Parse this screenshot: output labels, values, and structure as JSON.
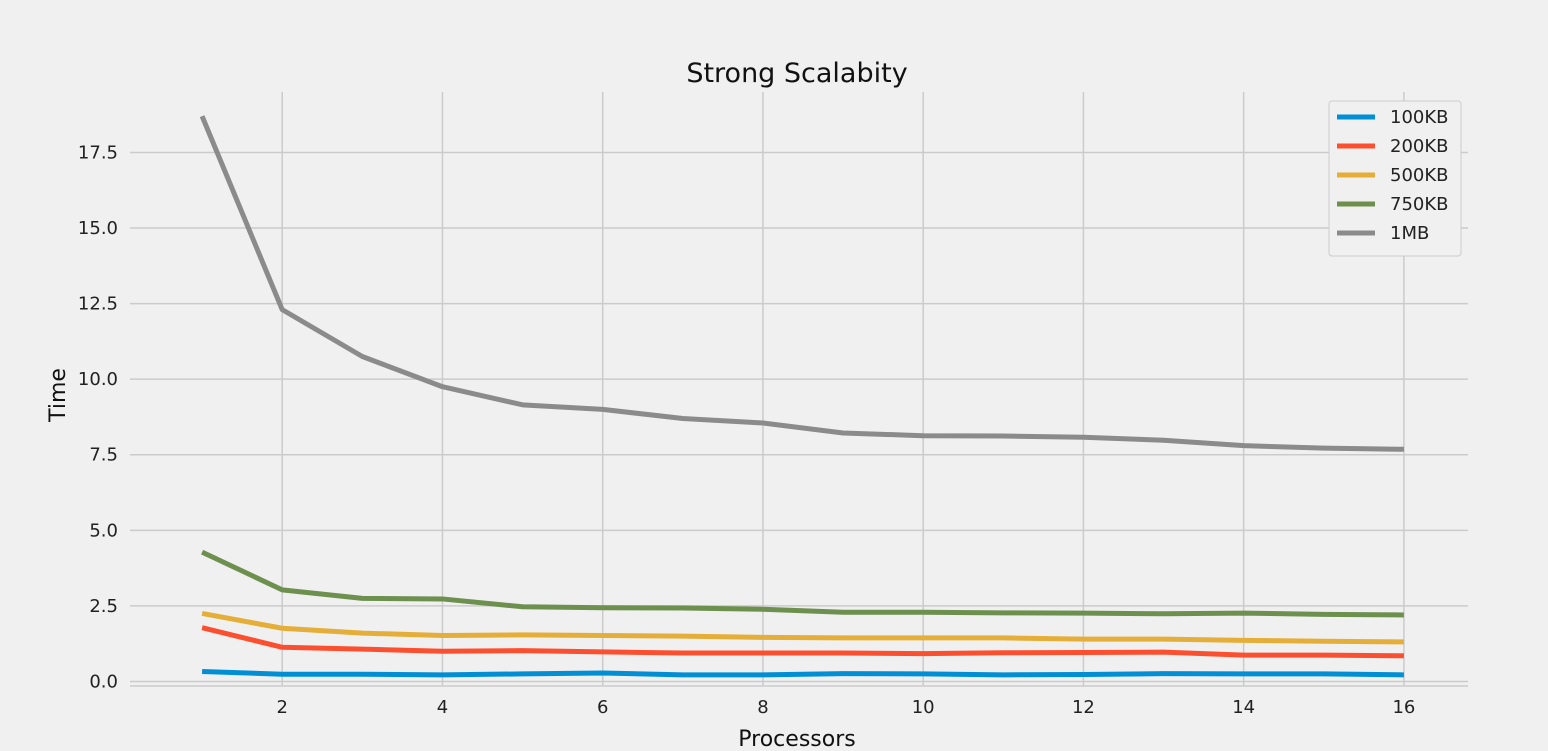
{
  "chart_data": {
    "type": "line",
    "title": "Strong Scalabity",
    "xlabel": "Processors",
    "ylabel": "Time",
    "x": [
      1,
      2,
      3,
      4,
      5,
      6,
      7,
      8,
      9,
      10,
      11,
      12,
      13,
      14,
      15,
      16
    ],
    "xlim": [
      0.1,
      16.8
    ],
    "ylim": [
      -0.15,
      19.5
    ],
    "xticks": [
      "2",
      "4",
      "6",
      "8",
      "10",
      "12",
      "14",
      "16"
    ],
    "yticks": [
      "0.0",
      "2.5",
      "5.0",
      "7.5",
      "10.0",
      "12.5",
      "15.0",
      "17.5"
    ],
    "grid": true,
    "legend_position": "top-right",
    "series": [
      {
        "name": "100KB",
        "color": "#008fd5",
        "values": [
          0.33,
          0.24,
          0.24,
          0.22,
          0.25,
          0.28,
          0.22,
          0.22,
          0.26,
          0.25,
          0.22,
          0.23,
          0.26,
          0.25,
          0.25,
          0.22
        ]
      },
      {
        "name": "200KB",
        "color": "#fc4f30",
        "values": [
          1.78,
          1.13,
          1.07,
          1.0,
          1.02,
          0.98,
          0.94,
          0.94,
          0.94,
          0.92,
          0.95,
          0.96,
          0.97,
          0.87,
          0.87,
          0.85
        ]
      },
      {
        "name": "500KB",
        "color": "#e5ae38",
        "values": [
          2.25,
          1.76,
          1.6,
          1.52,
          1.54,
          1.52,
          1.5,
          1.46,
          1.44,
          1.44,
          1.44,
          1.4,
          1.4,
          1.36,
          1.33,
          1.31
        ]
      },
      {
        "name": "750KB",
        "color": "#6d904f",
        "values": [
          4.28,
          3.03,
          2.75,
          2.73,
          2.47,
          2.44,
          2.43,
          2.39,
          2.29,
          2.29,
          2.27,
          2.26,
          2.24,
          2.26,
          2.22,
          2.2
        ]
      },
      {
        "name": "1MB",
        "color": "#8b8b8b",
        "values": [
          18.7,
          12.3,
          10.75,
          9.75,
          9.15,
          9.0,
          8.7,
          8.55,
          8.22,
          8.13,
          8.12,
          8.08,
          7.98,
          7.8,
          7.72,
          7.68
        ]
      }
    ]
  }
}
